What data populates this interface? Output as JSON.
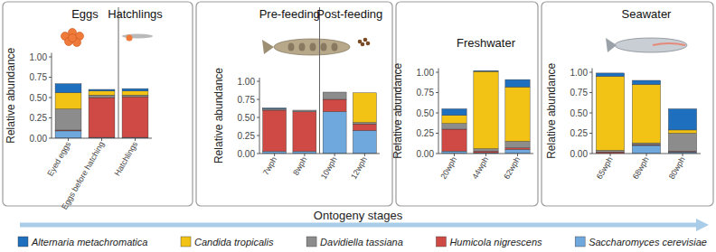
{
  "chart_data": [
    {
      "type": "bar",
      "stacked": true,
      "y_label": "Relative abundance",
      "groups": [
        {
          "label": "Eggs",
          "count": 2
        },
        {
          "label": "Hatchlings",
          "count": 1
        }
      ],
      "categories": [
        "Eyed eggs",
        "Eggs before hatching",
        "Hatchlings"
      ],
      "ylim": [
        0,
        1.05
      ],
      "yticks": [
        {
          "value": 0,
          "label": "0.00"
        },
        {
          "value": 0.25,
          "label": "0.25"
        },
        {
          "value": 0.5,
          "label": "0.50"
        },
        {
          "value": 0.75,
          "label": "0.75"
        },
        {
          "value": 1,
          "label": "1.00"
        }
      ],
      "legend": "bottom",
      "series": [
        {
          "name": "Alternaria metachromatica",
          "color": "#1f6fbf",
          "values": [
            0.11,
            0.02,
            0.03
          ]
        },
        {
          "name": "Candida tropicalis",
          "color": "#f2c314",
          "values": [
            0.2,
            0.05,
            0.05
          ]
        },
        {
          "name": "Davidiella tassiana",
          "color": "#8c8c8c",
          "values": [
            0.26,
            0.03,
            0.02
          ]
        },
        {
          "name": "Humicola nigrescens",
          "color": "#cf4a45",
          "values": [
            0.01,
            0.49,
            0.5
          ]
        },
        {
          "name": "Saccharomyces cerevisiae",
          "color": "#6fa8dc",
          "values": [
            0.09,
            0.01,
            0.01
          ]
        }
      ]
    },
    {
      "type": "bar",
      "stacked": true,
      "y_label": "Relative abundance",
      "groups": [
        {
          "label": "Pre-feeding",
          "count": 2
        },
        {
          "label": "Post-feeding",
          "count": 2
        }
      ],
      "categories": [
        "7wph",
        "8wph",
        "10wph",
        "12wph"
      ],
      "ylim": [
        0,
        1.05
      ],
      "yticks": [
        {
          "value": 0,
          "label": "0.00"
        },
        {
          "value": 0.25,
          "label": "0.25"
        },
        {
          "value": 0.5,
          "label": "0.50"
        },
        {
          "value": 0.75,
          "label": "0.75"
        },
        {
          "value": 1,
          "label": "1.00"
        }
      ],
      "series": [
        {
          "name": "Alternaria metachromatica",
          "color": "#1f6fbf",
          "values": [
            0.01,
            0.0,
            0.0,
            0.0
          ]
        },
        {
          "name": "Candida tropicalis",
          "color": "#f2c314",
          "values": [
            0.0,
            0.0,
            0.0,
            0.41
          ]
        },
        {
          "name": "Davidiella tassiana",
          "color": "#8c8c8c",
          "values": [
            0.02,
            0.02,
            0.1,
            0.02
          ]
        },
        {
          "name": "Humicola nigrescens",
          "color": "#cf4a45",
          "values": [
            0.57,
            0.55,
            0.17,
            0.09
          ]
        },
        {
          "name": "Saccharomyces cerevisiae",
          "color": "#6fa8dc",
          "values": [
            0.03,
            0.03,
            0.58,
            0.32
          ]
        }
      ]
    },
    {
      "type": "bar",
      "stacked": true,
      "y_label": "Relative abundance",
      "title": "Freshwater",
      "categories": [
        "20wph",
        "44wph",
        "62wph"
      ],
      "ylim": [
        0,
        1.05
      ],
      "yticks": [
        {
          "value": 0,
          "label": "0.00"
        },
        {
          "value": 0.25,
          "label": "0.25"
        },
        {
          "value": 0.5,
          "label": "0.50"
        },
        {
          "value": 0.75,
          "label": "0.75"
        },
        {
          "value": 1,
          "label": "1.00"
        }
      ],
      "series": [
        {
          "name": "Alternaria metachromatica",
          "color": "#1f6fbf",
          "values": [
            0.08,
            0.01,
            0.09
          ]
        },
        {
          "name": "Candida tropicalis",
          "color": "#f2c314",
          "values": [
            0.1,
            0.95,
            0.67
          ]
        },
        {
          "name": "Davidiella tassiana",
          "color": "#8c8c8c",
          "values": [
            0.07,
            0.03,
            0.08
          ]
        },
        {
          "name": "Humicola nigrescens",
          "color": "#cf4a45",
          "values": [
            0.27,
            0.02,
            0.02
          ]
        },
        {
          "name": "Saccharomyces cerevisiae",
          "color": "#6fa8dc",
          "values": [
            0.03,
            0.01,
            0.05
          ]
        }
      ]
    },
    {
      "type": "bar",
      "stacked": true,
      "y_label": "Relative abundance",
      "title": "Seawater",
      "categories": [
        "65wph",
        "68wph",
        "80wph"
      ],
      "ylim": [
        0,
        1.05
      ],
      "yticks": [
        {
          "value": 0,
          "label": "0.00"
        },
        {
          "value": 0.25,
          "label": "0.25"
        },
        {
          "value": 0.5,
          "label": "0.50"
        },
        {
          "value": 0.75,
          "label": "0.75"
        },
        {
          "value": 1,
          "label": "1.00"
        }
      ],
      "series": [
        {
          "name": "Alternaria metachromatica",
          "color": "#1f6fbf",
          "values": [
            0.04,
            0.05,
            0.26
          ]
        },
        {
          "name": "Candida tropicalis",
          "color": "#f2c314",
          "values": [
            0.91,
            0.72,
            0.04
          ]
        },
        {
          "name": "Davidiella tassiana",
          "color": "#8c8c8c",
          "values": [
            0.02,
            0.02,
            0.22
          ]
        },
        {
          "name": "Humicola nigrescens",
          "color": "#cf4a45",
          "values": [
            0.02,
            0.01,
            0.01
          ]
        },
        {
          "name": "Saccharomyces cerevisiae",
          "color": "#6fa8dc",
          "values": [
            0.0,
            0.1,
            0.02
          ]
        }
      ]
    }
  ],
  "footer": {
    "arrow_label": "Ontogeny stages"
  }
}
